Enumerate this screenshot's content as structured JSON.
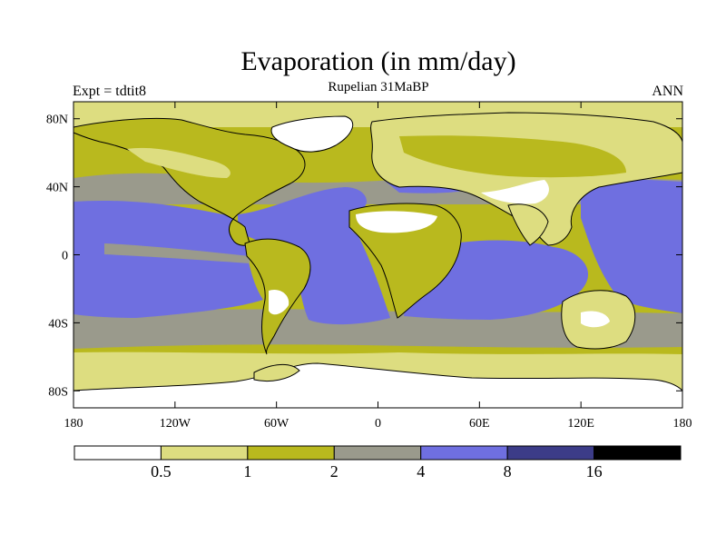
{
  "title": "Evaporation (in mm/day)",
  "subtitle": "Rupelian  31MaBP",
  "left_label": "Expt = tdtit8",
  "right_label": "ANN",
  "lat_ticks": [
    {
      "label": "80N",
      "value": 80
    },
    {
      "label": "40N",
      "value": 40
    },
    {
      "label": "0",
      "value": 0
    },
    {
      "label": "40S",
      "value": -40
    },
    {
      "label": "80S",
      "value": -80
    }
  ],
  "lon_ticks": [
    {
      "label": "180",
      "value": -180
    },
    {
      "label": "120W",
      "value": -120
    },
    {
      "label": "60W",
      "value": -60
    },
    {
      "label": "0",
      "value": 0
    },
    {
      "label": "60E",
      "value": 60
    },
    {
      "label": "120E",
      "value": 120
    },
    {
      "label": "180",
      "value": 180
    }
  ],
  "colorbar": {
    "colors": [
      "#ffffff",
      "#dddd80",
      "#b9b91e",
      "#9a9a8c",
      "#6f6fe0",
      "#3c3c88",
      "#000000"
    ],
    "labels": [
      "0.5",
      "1",
      "2",
      "4",
      "8",
      "16"
    ]
  },
  "palette": {
    "very_low": "#ffffff",
    "low": "#dddd80",
    "mid_low": "#b9b91e",
    "mid": "#9a9a8c",
    "high": "#6f6fe0"
  }
}
